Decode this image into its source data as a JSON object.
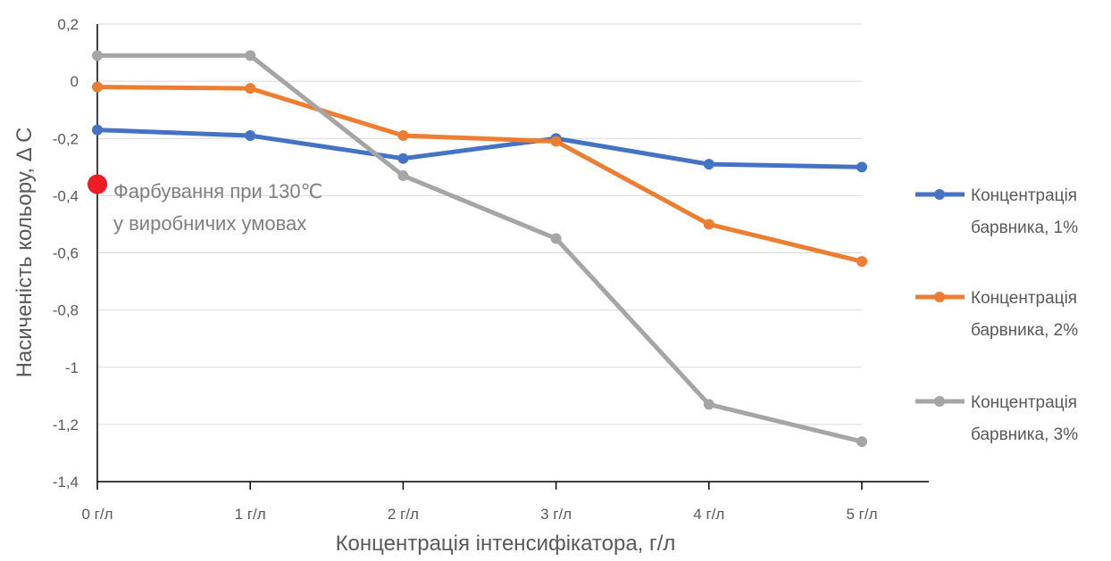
{
  "chart_data": {
    "type": "line",
    "title": "",
    "xlabel": "Концентрація інтенсифікатора, г/л",
    "ylabel": "Насиченість кольору, Δ C",
    "categories": [
      "0 г/л",
      "1 г/л",
      "2 г/л",
      "3 г/л",
      "4 г/л",
      "5 г/л"
    ],
    "ylim": [
      -1.4,
      0.2
    ],
    "yticks": [
      0.2,
      0,
      -0.2,
      -0.4,
      -0.6,
      -0.8,
      -1,
      -1.2,
      -1.4
    ],
    "ytick_labels": [
      "0,2",
      "0",
      "-0,2",
      "-0,4",
      "-0,6",
      "-0,8",
      "-1",
      "-1,2",
      "-1,4"
    ],
    "grid": true,
    "legend_position": "right",
    "series": [
      {
        "name": "Концентрація барвника, 1%",
        "legend_lines": [
          "Концентрація",
          "барвника, 1%"
        ],
        "color": "#4472c4",
        "values": [
          -0.17,
          -0.19,
          -0.27,
          -0.2,
          -0.29,
          -0.3
        ]
      },
      {
        "name": "Концентрація барвника, 2%",
        "legend_lines": [
          "Концентрація",
          "барвника, 2%"
        ],
        "color": "#ed7d31",
        "values": [
          -0.02,
          -0.025,
          -0.19,
          -0.21,
          -0.5,
          -0.63
        ]
      },
      {
        "name": "Концентрація барвника, 3%",
        "legend_lines": [
          "Концентрація",
          "барвника, 3%"
        ],
        "color": "#a5a5a5",
        "values": [
          0.09,
          0.09,
          -0.33,
          -0.55,
          -1.13,
          -1.26
        ]
      }
    ],
    "annotation": {
      "lines": [
        "Фарбування при 130℃",
        "у виробничих умовах"
      ],
      "point": {
        "x": "0 г/л",
        "y": -0.36
      },
      "marker_color": "#ee1c25"
    }
  }
}
